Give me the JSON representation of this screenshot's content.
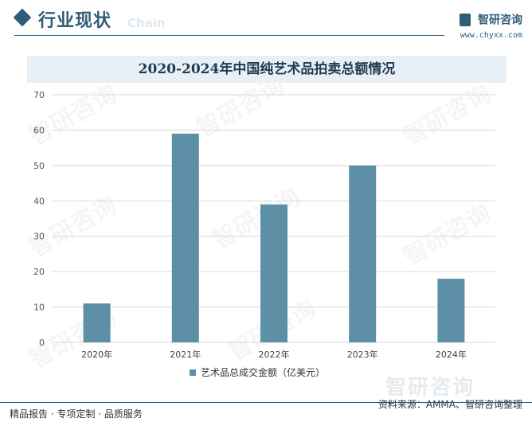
{
  "header": {
    "section_title": "行业现状",
    "section_subtitle": "Chain",
    "brand_name": "智研咨询",
    "brand_url": "www.chyxx.com"
  },
  "watermark_text": "智研咨询",
  "chart_data": {
    "type": "bar",
    "title": "2020-2024年中国纯艺术品拍卖总额情况",
    "categories": [
      "2020年",
      "2021年",
      "2022年",
      "2023年",
      "2024年"
    ],
    "series": [
      {
        "name": "艺术品总成交金额（亿美元）",
        "values": [
          11,
          59,
          39,
          50,
          18
        ]
      }
    ],
    "ylim": [
      0,
      70
    ],
    "yticks": [
      0,
      10,
      20,
      30,
      40,
      50,
      60,
      70
    ],
    "grid": true,
    "legend": "bottom",
    "bar_color": "#5d8fa7"
  },
  "footer": {
    "left_text": "精品报告 · 专项定制 · 品质服务",
    "source_text": "资料来源：AMMA、智研咨询整理",
    "bottom_logo": "智研咨询"
  }
}
